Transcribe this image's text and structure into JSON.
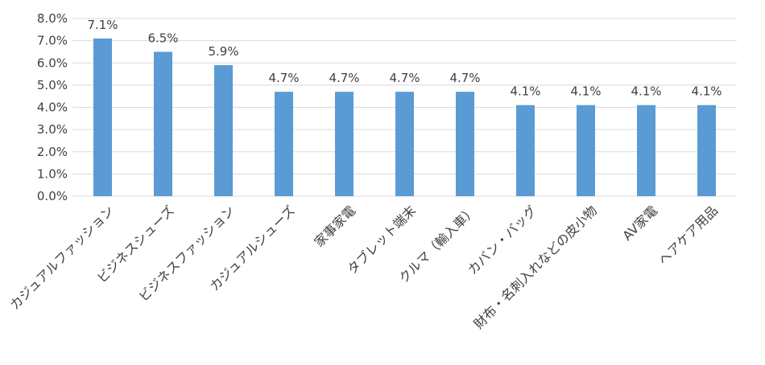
{
  "chart_data": {
    "type": "bar",
    "categories": [
      "カジュアルファッション",
      "ビジネスシューズ",
      "ビジネスファッション",
      "カジュアルシューズ",
      "家事家電",
      "タブレット端末",
      "クルマ（輸入車）",
      "カバン・バッグ",
      "財布・名刺入れなどの皮小物",
      "AV家電",
      "ヘアケア用品"
    ],
    "values": [
      7.1,
      6.5,
      5.9,
      4.7,
      4.7,
      4.7,
      4.7,
      4.1,
      4.1,
      4.1,
      4.1
    ],
    "data_labels": [
      "7.1%",
      "6.5%",
      "5.9%",
      "4.7%",
      "4.7%",
      "4.7%",
      "4.7%",
      "4.1%",
      "4.1%",
      "4.1%",
      "4.1%"
    ],
    "y_ticks": [
      0,
      1,
      2,
      3,
      4,
      5,
      6,
      7,
      8
    ],
    "y_tick_labels": [
      "0.0%",
      "1.0%",
      "2.0%",
      "3.0%",
      "4.0%",
      "5.0%",
      "6.0%",
      "7.0%",
      "8.0%"
    ],
    "ylim": [
      0,
      8
    ],
    "title": "",
    "xlabel": "",
    "ylabel": "",
    "grid": true,
    "legend": "none",
    "bar_color": "#5b9bd5",
    "grid_color": "#d9d9d9"
  }
}
